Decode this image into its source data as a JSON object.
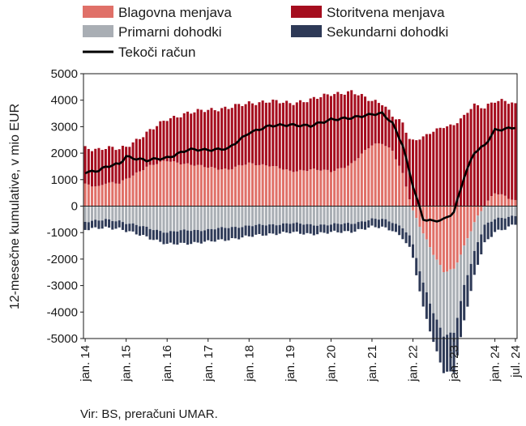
{
  "chart_data": {
    "type": "bar",
    "subtype": "stacked bar with line overlay",
    "ylabel": "12-mesečne kumulative, v mio EUR",
    "ylim": [
      -5000,
      5000
    ],
    "yticks": [
      "5000",
      "4000",
      "3000",
      "2000",
      "1000",
      "0",
      "-1000",
      "-2000",
      "-3000",
      "-4000",
      "-5000"
    ],
    "xtick_labels": [
      "jan. 14",
      "jan. 15",
      "jan. 16",
      "jan. 17",
      "jan. 18",
      "jan. 19",
      "jan. 20",
      "jan. 21",
      "jan. 22",
      "jan. 23",
      "jan. 24",
      "jul. 24"
    ],
    "xtick_month_index": [
      0,
      12,
      24,
      36,
      48,
      60,
      72,
      84,
      96,
      108,
      120,
      126
    ],
    "legend_position": "top",
    "grid": false,
    "source": "Vir: BS, preračuni UMAR.",
    "colors": {
      "Blagovna menjava": "#e07068",
      "Storitvena menjava": "#a50d1e",
      "Primarni dohodki": "#a9aeb4",
      "Sekundarni dohodki": "#2e3a57",
      "Tekoči račun": "#000000"
    },
    "series_anchor_months": [
      0,
      4,
      6,
      10,
      12,
      18,
      24,
      30,
      36,
      42,
      48,
      54,
      60,
      66,
      72,
      78,
      84,
      87,
      90,
      93,
      96,
      99,
      102,
      105,
      108,
      111,
      114,
      117,
      120,
      123,
      126
    ],
    "series": [
      {
        "name": "Blagovna menjava",
        "kind": "bar",
        "values": [
          800,
          750,
          900,
          850,
          1000,
          1500,
          1700,
          1600,
          1450,
          1400,
          1600,
          1550,
          1300,
          1400,
          1300,
          1600,
          2300,
          2400,
          2100,
          1200,
          -200,
          -1000,
          -1800,
          -2500,
          -2400,
          -1500,
          -600,
          0,
          500,
          400,
          200
        ]
      },
      {
        "name": "Storitvena menjava",
        "kind": "bar",
        "values": [
          1400,
          1400,
          1300,
          1300,
          1250,
          1250,
          1600,
          1900,
          2200,
          2300,
          2300,
          2400,
          2600,
          2600,
          2950,
          2700,
          1700,
          1500,
          1300,
          1900,
          2500,
          2600,
          2800,
          3000,
          3100,
          3400,
          3800,
          3700,
          3500,
          3600,
          3600
        ]
      },
      {
        "name": "Primarni dohodki",
        "kind": "bar",
        "values": [
          -600,
          -550,
          -500,
          -550,
          -650,
          -800,
          -1000,
          -900,
          -900,
          -800,
          -750,
          -700,
          -650,
          -700,
          -700,
          -650,
          -500,
          -500,
          -600,
          -800,
          -1300,
          -1900,
          -2200,
          -2400,
          -2400,
          -1500,
          -1100,
          -700,
          -500,
          -450,
          -350
        ]
      },
      {
        "name": "Sekundarni dohodki",
        "kind": "bar",
        "values": [
          -300,
          -280,
          -300,
          -300,
          -300,
          -350,
          -450,
          -500,
          -450,
          -450,
          -400,
          -350,
          -350,
          -350,
          -300,
          -300,
          -300,
          -300,
          -300,
          -400,
          -500,
          -900,
          -1100,
          -1400,
          -1500,
          -1300,
          -900,
          -700,
          -500,
          -400,
          -300
        ]
      },
      {
        "name": "Tekoči račun",
        "kind": "line",
        "values": [
          1300,
          1350,
          1450,
          1600,
          1900,
          1700,
          1850,
          2100,
          2150,
          2150,
          2800,
          3000,
          3100,
          3000,
          3300,
          3300,
          3500,
          3500,
          3100,
          2300,
          800,
          -500,
          -600,
          -500,
          -200,
          1100,
          2000,
          2300,
          2900,
          2900,
          2950
        ]
      }
    ]
  }
}
